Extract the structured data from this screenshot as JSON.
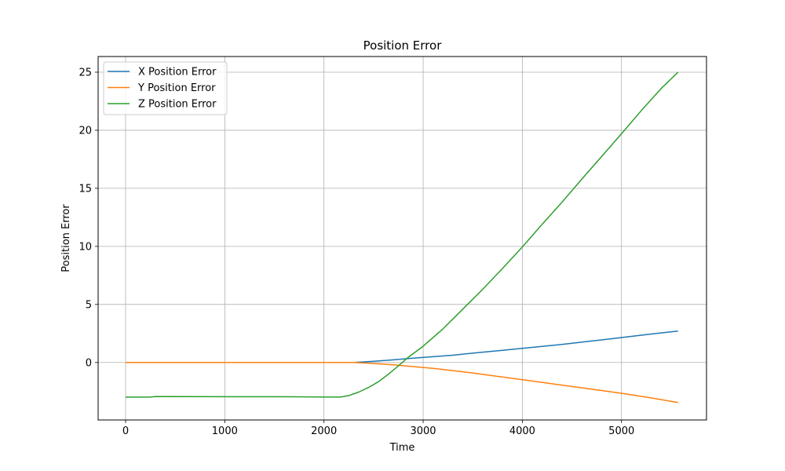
{
  "chart_data": {
    "type": "line",
    "title": "Position Error",
    "xlabel": "Time",
    "ylabel": "Position Error",
    "xlim": [
      -277,
      5857
    ],
    "ylim": [
      -4.95,
      26.35
    ],
    "x_ticks": [
      0,
      1000,
      2000,
      3000,
      4000,
      5000
    ],
    "y_ticks": [
      0,
      5,
      10,
      15,
      20,
      25
    ],
    "x_tick_labels": [
      "0",
      "1000",
      "2000",
      "3000",
      "4000",
      "5000"
    ],
    "y_tick_labels": [
      "0",
      "5",
      "10",
      "15",
      "20",
      "25"
    ],
    "grid": true,
    "legend_position": "top-left",
    "series": [
      {
        "name": "X Position Error",
        "color": "#1f77b4",
        "points": [
          [
            0,
            0.0
          ],
          [
            500,
            0.0
          ],
          [
            1000,
            0.0
          ],
          [
            1500,
            0.0
          ],
          [
            2000,
            0.0
          ],
          [
            2300,
            0.0
          ],
          [
            2500,
            0.1
          ],
          [
            2700,
            0.23
          ],
          [
            2900,
            0.38
          ],
          [
            3100,
            0.5
          ],
          [
            3300,
            0.63
          ],
          [
            3500,
            0.8
          ],
          [
            3800,
            1.05
          ],
          [
            4100,
            1.3
          ],
          [
            4400,
            1.55
          ],
          [
            4700,
            1.85
          ],
          [
            5000,
            2.15
          ],
          [
            5300,
            2.45
          ],
          [
            5570,
            2.7
          ]
        ]
      },
      {
        "name": "Y Position Error",
        "color": "#ff7f0e",
        "points": [
          [
            0,
            0.0
          ],
          [
            500,
            0.0
          ],
          [
            1000,
            0.0
          ],
          [
            1500,
            0.0
          ],
          [
            2000,
            0.0
          ],
          [
            2300,
            0.0
          ],
          [
            2500,
            -0.08
          ],
          [
            2700,
            -0.2
          ],
          [
            2900,
            -0.35
          ],
          [
            3100,
            -0.5
          ],
          [
            3300,
            -0.7
          ],
          [
            3500,
            -0.9
          ],
          [
            3800,
            -1.25
          ],
          [
            4100,
            -1.6
          ],
          [
            4400,
            -1.95
          ],
          [
            4700,
            -2.3
          ],
          [
            5000,
            -2.65
          ],
          [
            5300,
            -3.05
          ],
          [
            5570,
            -3.45
          ]
        ]
      },
      {
        "name": "Z Position Error",
        "color": "#2ca02c",
        "points": [
          [
            0,
            -2.98
          ],
          [
            250,
            -2.98
          ],
          [
            300,
            -2.93
          ],
          [
            1000,
            -2.95
          ],
          [
            1500,
            -2.95
          ],
          [
            2000,
            -2.97
          ],
          [
            2170,
            -2.97
          ],
          [
            2250,
            -2.85
          ],
          [
            2350,
            -2.55
          ],
          [
            2450,
            -2.15
          ],
          [
            2550,
            -1.65
          ],
          [
            2650,
            -1.0
          ],
          [
            2750,
            -0.3
          ],
          [
            2850,
            0.45
          ],
          [
            3000,
            1.4
          ],
          [
            3200,
            2.9
          ],
          [
            3400,
            4.6
          ],
          [
            3600,
            6.3
          ],
          [
            3800,
            8.1
          ],
          [
            4000,
            9.95
          ],
          [
            4200,
            11.9
          ],
          [
            4400,
            13.8
          ],
          [
            4600,
            15.8
          ],
          [
            4800,
            17.75
          ],
          [
            5000,
            19.7
          ],
          [
            5200,
            21.7
          ],
          [
            5400,
            23.6
          ],
          [
            5570,
            25.0
          ]
        ]
      }
    ]
  }
}
